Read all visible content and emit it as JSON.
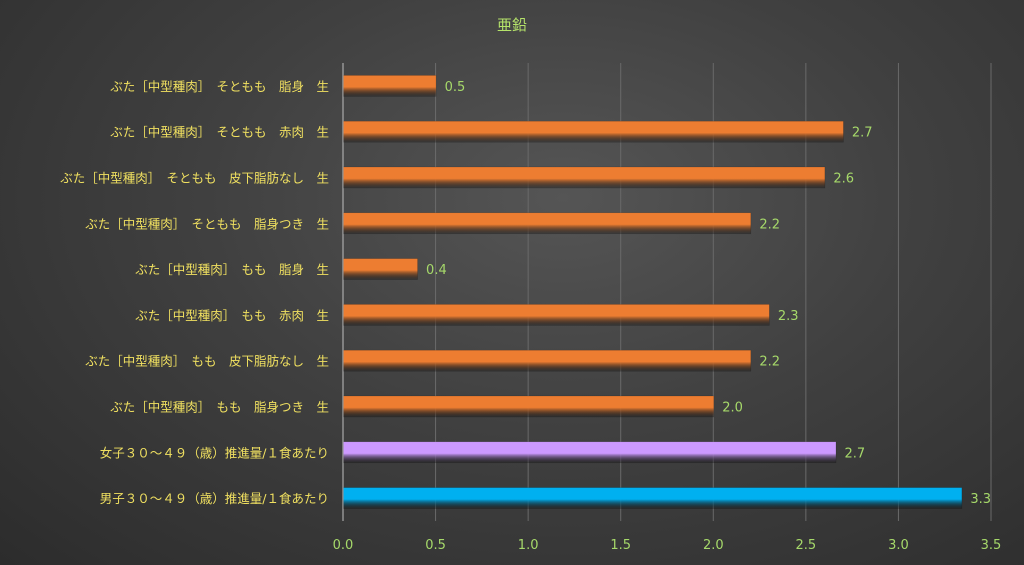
{
  "chart_data": {
    "type": "bar",
    "orientation": "horizontal",
    "title": "亜鉛",
    "xlabel": "",
    "ylabel": "",
    "xlim": [
      0,
      3.5
    ],
    "x_ticks": [
      "0.0",
      "0.5",
      "1.0",
      "1.5",
      "2.0",
      "2.5",
      "3.0",
      "3.5"
    ],
    "grid": true,
    "legend": "none",
    "categories": [
      "ぶた［中型種肉］　そともも　脂身　生",
      "ぶた［中型種肉］　そともも　赤肉　生",
      "ぶた［中型種肉］　そともも　皮下脂肪なし　生",
      "ぶた［中型種肉］　そともも　脂身つき　生",
      "ぶた［中型種肉］　もも　脂身　生",
      "ぶた［中型種肉］　もも　赤肉　生",
      "ぶた［中型種肉］　もも　皮下脂肪なし　生",
      "ぶた［中型種肉］　もも　脂身つき　生",
      "女子３０～４９（歳）推進量/１食あたり",
      "男子３０～４９（歳）推進量/１食あたり"
    ],
    "values": [
      0.5,
      2.7,
      2.6,
      2.2,
      0.4,
      2.3,
      2.2,
      2.0,
      2.66,
      3.34
    ],
    "data_labels": [
      "0.5",
      "2.7",
      "2.6",
      "2.2",
      "0.4",
      "2.3",
      "2.2",
      "2.0",
      "2.7",
      "3.3"
    ],
    "bar_colors": [
      "#ed7d31",
      "#ed7d31",
      "#ed7d31",
      "#ed7d31",
      "#ed7d31",
      "#ed7d31",
      "#ed7d31",
      "#ed7d31",
      "#cc99ff",
      "#00b0f0"
    ],
    "label_color": "#f0e060",
    "tick_color": "#a6d96a",
    "title_color": "#b5e36a"
  }
}
